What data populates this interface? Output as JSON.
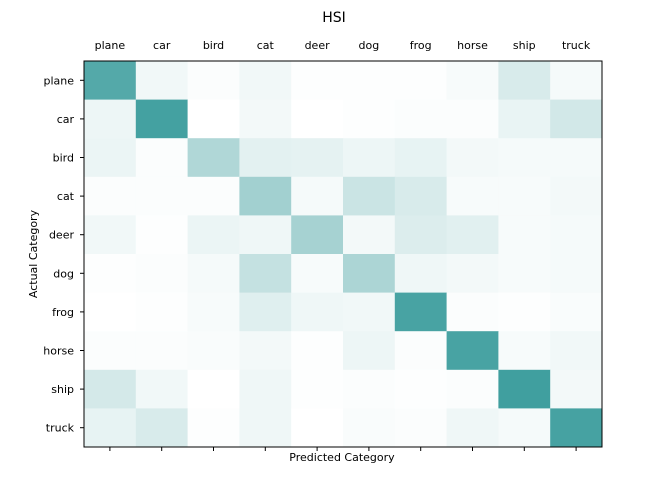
{
  "chart_data": {
    "type": "heatmap",
    "title": "HSI",
    "xlabel": "Predicted Category",
    "ylabel": "Actual Category",
    "x_categories": [
      "plane",
      "car",
      "bird",
      "cat",
      "deer",
      "dog",
      "frog",
      "horse",
      "ship",
      "truck"
    ],
    "y_categories": [
      "plane",
      "car",
      "bird",
      "cat",
      "deer",
      "dog",
      "frog",
      "horse",
      "ship",
      "truck"
    ],
    "x_tick_position": "top",
    "grid": false,
    "colormap": {
      "low": "#ffffff",
      "high": "#3a9c9c"
    },
    "values": [
      [
        0.87,
        0.07,
        0.02,
        0.07,
        0.01,
        0.01,
        0.01,
        0.04,
        0.2,
        0.05
      ],
      [
        0.09,
        0.95,
        0.0,
        0.06,
        0.0,
        0.01,
        0.02,
        0.02,
        0.11,
        0.23
      ],
      [
        0.1,
        0.02,
        0.4,
        0.14,
        0.13,
        0.09,
        0.12,
        0.06,
        0.05,
        0.05
      ],
      [
        0.02,
        0.02,
        0.02,
        0.47,
        0.05,
        0.27,
        0.2,
        0.04,
        0.04,
        0.06
      ],
      [
        0.07,
        0.01,
        0.1,
        0.08,
        0.45,
        0.06,
        0.18,
        0.15,
        0.04,
        0.05
      ],
      [
        0.01,
        0.02,
        0.05,
        0.3,
        0.04,
        0.42,
        0.08,
        0.06,
        0.04,
        0.05
      ],
      [
        0.0,
        0.01,
        0.04,
        0.16,
        0.08,
        0.07,
        0.93,
        0.02,
        0.01,
        0.03
      ],
      [
        0.02,
        0.02,
        0.03,
        0.06,
        0.01,
        0.09,
        0.02,
        0.93,
        0.04,
        0.07
      ],
      [
        0.22,
        0.07,
        0.0,
        0.08,
        0.01,
        0.02,
        0.01,
        0.02,
        0.97,
        0.06
      ],
      [
        0.12,
        0.2,
        0.01,
        0.08,
        0.0,
        0.03,
        0.02,
        0.08,
        0.05,
        0.94
      ]
    ]
  }
}
